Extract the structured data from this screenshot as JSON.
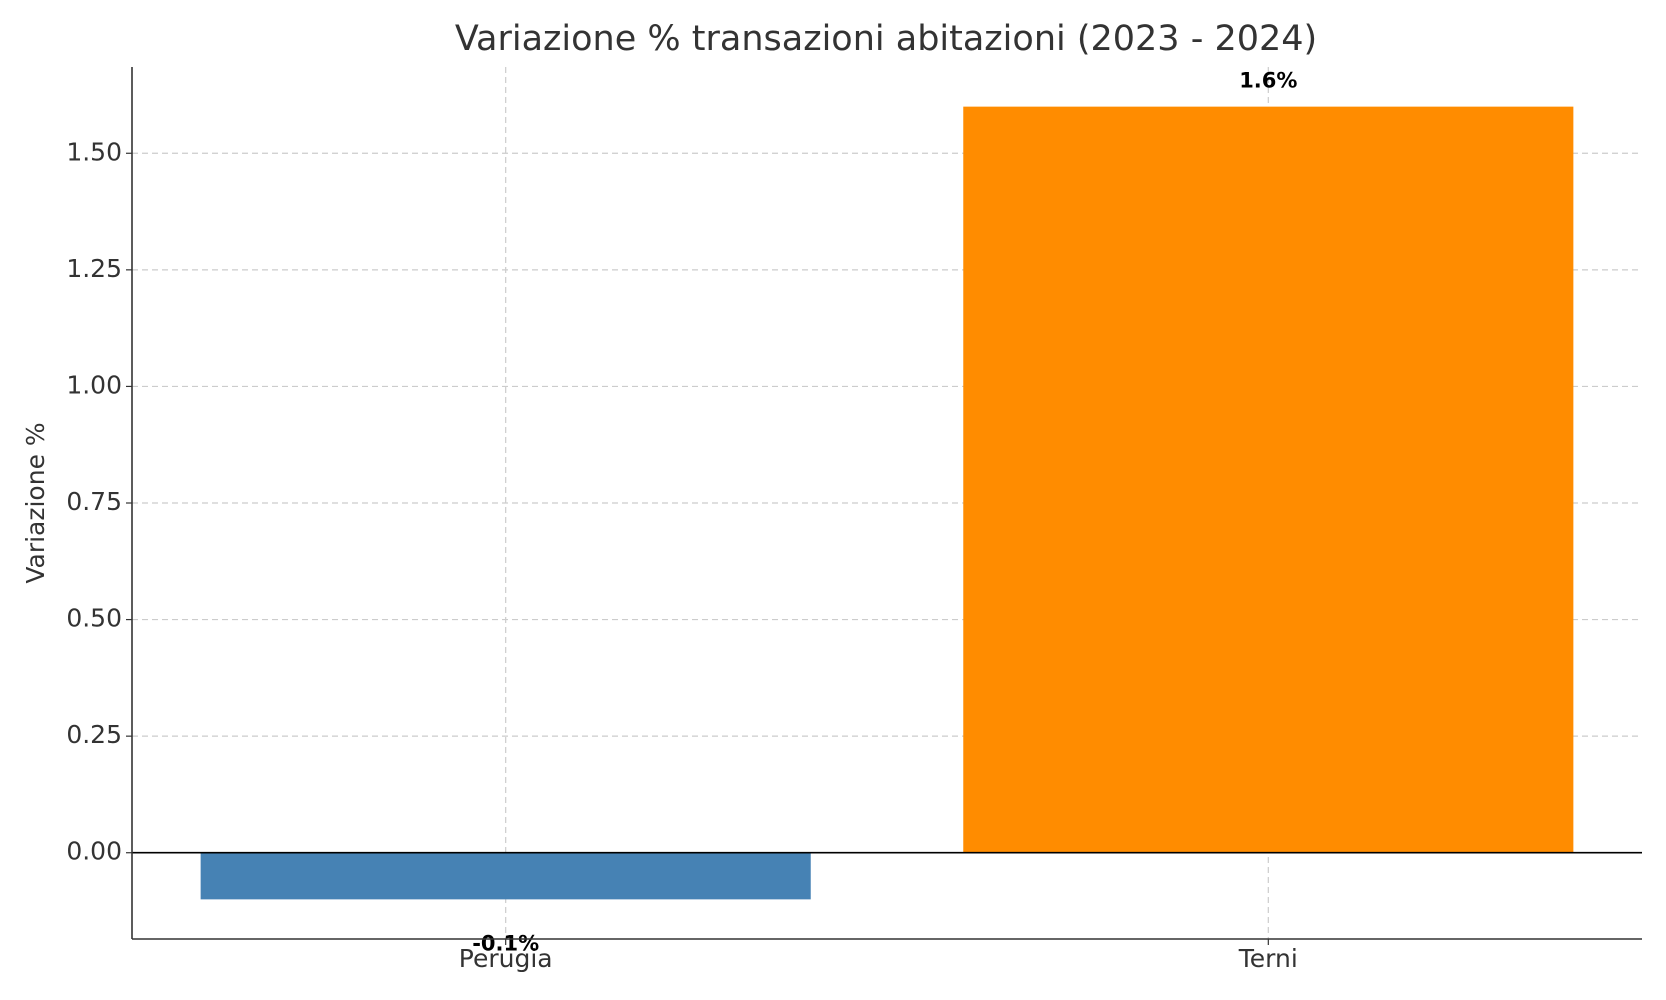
{
  "chart_data": {
    "type": "bar",
    "title": "Variazione % transazioni abitazioni (2023 - 2024)",
    "y_label": "Variazione %",
    "categories": [
      "Perugia",
      "Terni"
    ],
    "values": [
      -0.1,
      1.6
    ],
    "value_labels": [
      "-0.1%",
      "1.6%"
    ],
    "colors": [
      "#4682b4",
      "#ff8c00"
    ],
    "ylim": [
      -0.185,
      1.685
    ],
    "yticks": [
      {
        "value": 0,
        "label": "0.00"
      },
      {
        "value": 0.25,
        "label": "0.25"
      },
      {
        "value": 0.5,
        "label": "0.50"
      },
      {
        "value": 0.75,
        "label": "0.75"
      },
      {
        "value": 1,
        "label": "1.00"
      },
      {
        "value": 1.25,
        "label": "1.25"
      },
      {
        "value": 1.5,
        "label": "1.50"
      }
    ],
    "grid": true
  }
}
